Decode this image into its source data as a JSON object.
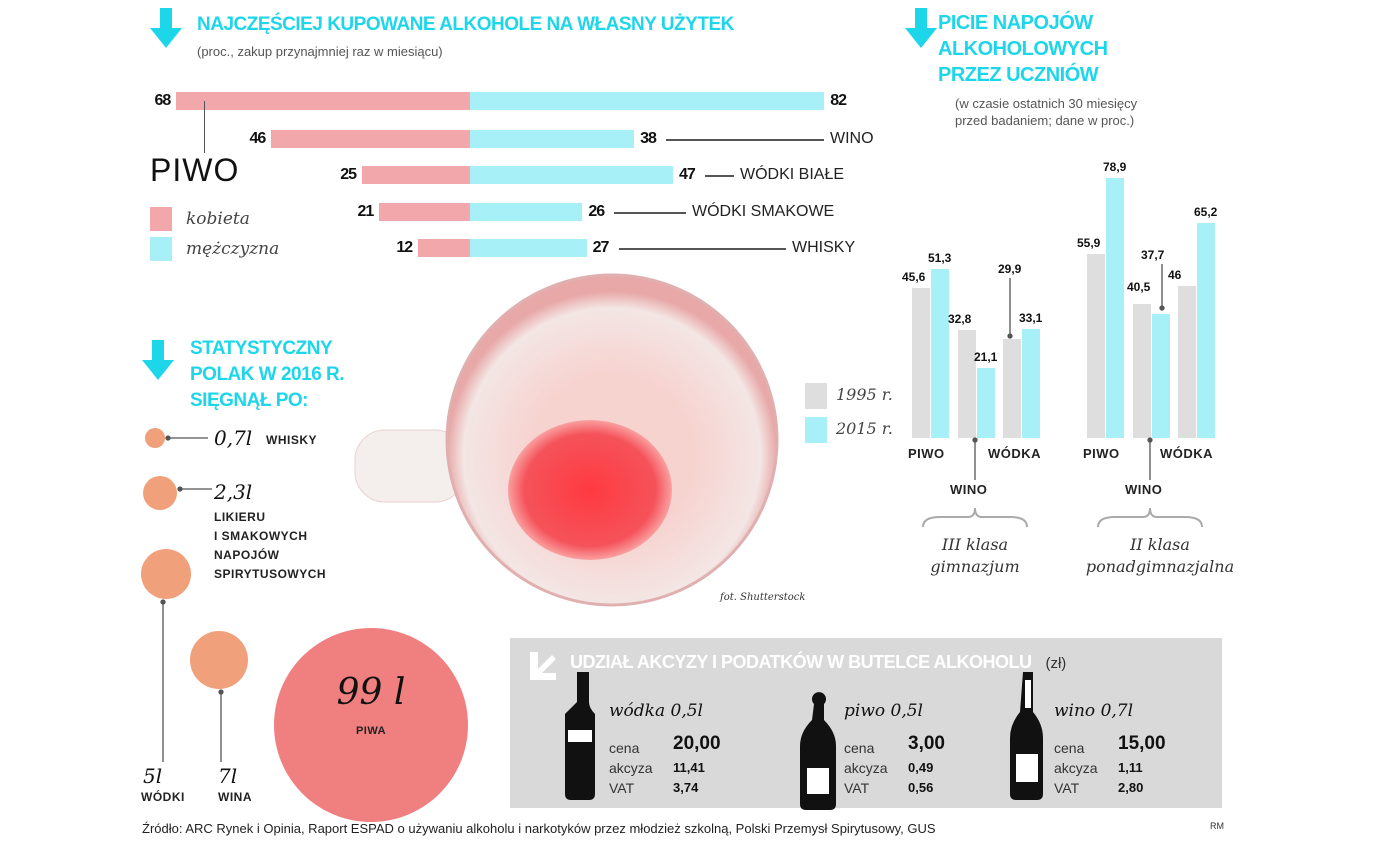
{
  "colors": {
    "accent": "#1ed6ea",
    "female": "#f2a7ab",
    "male": "#a8f0f8",
    "y1995": "#dedede",
    "y2015": "#a8f0f8",
    "bubble": "#f0a07a",
    "beer_bubble": "#f07f80",
    "tax_box": "#d9d9d9"
  },
  "icons": {
    "section_arrow": "arrow-down-icon",
    "tax_arrow": "arrow-down-right-icon"
  },
  "chart_data": [
    {
      "type": "bar",
      "title": "NAJCZĘŚCIEJ KUPOWANE ALKOHOLE NA WŁASNY UŻYTEK",
      "subtitle": "(proc., zakup przynajmniej raz w miesiącu)",
      "orientation": "horizontal-diverging",
      "categories": [
        "PIWO",
        "WINO",
        "WÓDKI BIAŁE",
        "WÓDKI SMAKOWE",
        "WHISKY"
      ],
      "series": [
        {
          "name": "kobieta",
          "values": [
            68,
            46,
            25,
            21,
            12
          ]
        },
        {
          "name": "mężczyzna",
          "values": [
            82,
            38,
            47,
            26,
            27
          ]
        }
      ],
      "legend": "left"
    },
    {
      "type": "bar",
      "title": [
        "PICIE NAPOJÓW",
        "ALKOHOLOWYCH",
        "PRZEZ UCZNIÓW"
      ],
      "subtitle": [
        "(w czasie ostatnich 30 miesięcy",
        "przed badaniem; dane w proc.)"
      ],
      "groups": [
        {
          "label": [
            "III klasa",
            "gimnazjum"
          ],
          "categories": [
            "PIWO",
            "WINO",
            "WÓDKA"
          ],
          "y1995": [
            45.6,
            32.8,
            29.9
          ],
          "y2015": [
            51.3,
            21.1,
            33.1
          ],
          "labels1995": [
            "45,6",
            "32,8",
            "29,9"
          ],
          "labels2015": [
            "51,3",
            "21,1",
            "33,1"
          ]
        },
        {
          "label": [
            "II klasa",
            "ponadgimnazjalna"
          ],
          "categories": [
            "PIWO",
            "WINO",
            "WÓDKA"
          ],
          "y1995": [
            55.9,
            40.5,
            46
          ],
          "y2015": [
            78.9,
            37.7,
            65.2
          ],
          "labels1995": [
            "55,9",
            "40,5",
            "46"
          ],
          "labels2015": [
            "78,9",
            "37,7",
            "65,2"
          ]
        }
      ],
      "series_names": [
        "1995 r.",
        "2015 r."
      ],
      "legend": "left"
    },
    {
      "type": "bubble",
      "title": [
        "STATYSTYCZNY",
        "POLAK W 2016 R.",
        "SIĘGNĄŁ PO:"
      ],
      "items": [
        {
          "value": 0.7,
          "amount": "0,7l",
          "label": "WHISKY"
        },
        {
          "value": 2.3,
          "amount": "2,3l",
          "label": "LIKIERU I SMAKOWYCH NAPOJÓW SPIRYTUSOWYCH",
          "label_lines": [
            "LIKIERU",
            "I SMAKOWYCH",
            "NAPOJÓW",
            "SPIRYTUSOWYCH"
          ]
        },
        {
          "value": 5,
          "amount": "5l",
          "label": "WÓDKI"
        },
        {
          "value": 7,
          "amount": "7l",
          "label": "WINA"
        },
        {
          "value": 99,
          "amount": "99 l",
          "label": "PIWA"
        }
      ]
    },
    {
      "type": "table",
      "title": "UDZIAŁ AKCYZY I PODATKÓW W BUTELCE ALKOHOLU",
      "unit": "(zł)",
      "row_labels": [
        "cena",
        "akcyza",
        "VAT"
      ],
      "items": [
        {
          "name": "wódka 0,5l",
          "icon": "vodka-bottle-icon",
          "cena": "20,00",
          "akcyza": "11,41",
          "vat": "3,74"
        },
        {
          "name": "piwo 0,5l",
          "icon": "beer-bottle-icon",
          "cena": "3,00",
          "akcyza": "0,49",
          "vat": "0,56"
        },
        {
          "name": "wino 0,7l",
          "icon": "wine-bottle-icon",
          "cena": "15,00",
          "akcyza": "1,11",
          "vat": "2,80"
        }
      ]
    }
  ],
  "photo_credit": "fot. Shutterstock",
  "footer": {
    "source": "Źródło: ARC Rynek i Opinia, Raport ESPAD o używaniu alkoholu i narkotyków przez młodzież szkolną, Polski Przemysł Spirytusowy, GUS",
    "author": "RM"
  }
}
